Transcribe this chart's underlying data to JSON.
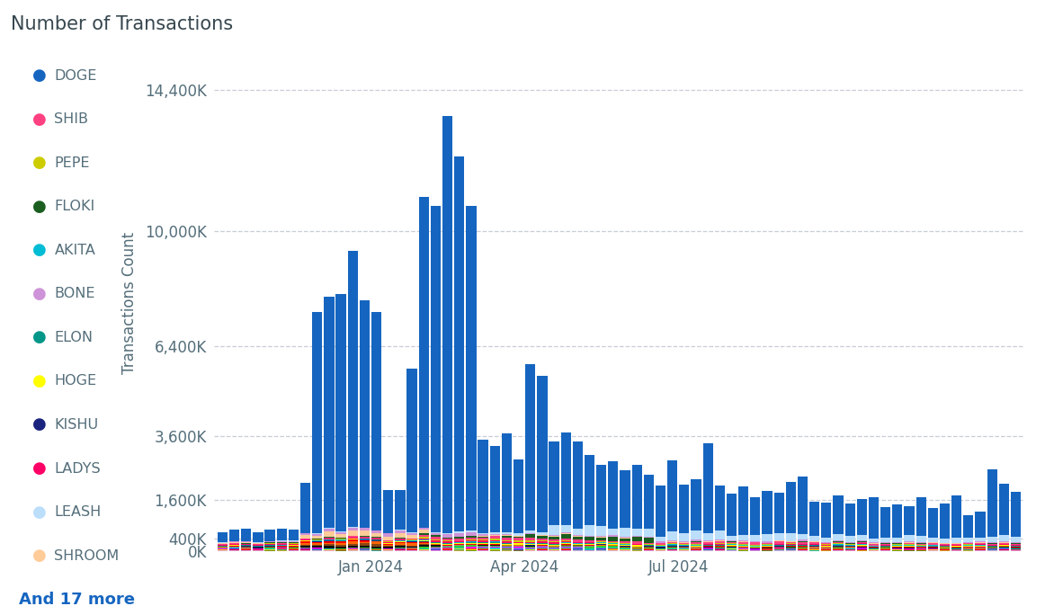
{
  "title": "Number of Transactions",
  "ylabel": "Transactions Count",
  "background_color": "#ffffff",
  "plot_bg_color": "#ffffff",
  "grid_color": "#b0b8c8",
  "title_color": "#37474f",
  "label_color": "#546e7a",
  "ytick_labels": [
    "0K",
    "400K",
    "1,600K",
    "3,600K",
    "6,400K",
    "10,000K",
    "14,400K"
  ],
  "ytick_values": [
    0,
    400000,
    1600000,
    3600000,
    6400000,
    10000000,
    14400000
  ],
  "ylim": [
    0,
    15500000
  ],
  "xtick_labels": [
    "Jan 2024",
    "Apr 2024",
    "Jul 2024"
  ],
  "legend_items": [
    {
      "label": "DOGE",
      "color": "#1565C0"
    },
    {
      "label": "SHIB",
      "color": "#FF4081"
    },
    {
      "label": "PEPE",
      "color": "#CCCC00"
    },
    {
      "label": "FLOKI",
      "color": "#1B5E20"
    },
    {
      "label": "AKITA",
      "color": "#00BCD4"
    },
    {
      "label": "BONE",
      "color": "#CE93D8"
    },
    {
      "label": "ELON",
      "color": "#009688"
    },
    {
      "label": "HOGE",
      "color": "#FFFF00"
    },
    {
      "label": "KISHU",
      "color": "#1A237E"
    },
    {
      "label": "LADYS",
      "color": "#FF0066"
    },
    {
      "label": "LEASH",
      "color": "#BBDEFB"
    },
    {
      "label": "SHROOM",
      "color": "#FFCC99"
    }
  ],
  "and_more_text": "And 17 more",
  "and_more_color": "#1565C0",
  "series_colors": {
    "DOGE": "#1565C0",
    "SHIB": "#FF4081",
    "PEPE": "#CCCC00",
    "FLOKI": "#1B5E20",
    "AKITA": "#00BCD4",
    "BONE": "#CE93D8",
    "ELON": "#009688",
    "HOGE": "#FFFF00",
    "KISHU": "#1A237E",
    "LADYS": "#FF0066",
    "LEASH": "#BBDEFB",
    "SHROOM": "#FFCC99",
    "R1": "#FF0000",
    "R2": "#FF6600",
    "R3": "#8B4513",
    "R4": "#111111",
    "R5": "#888888",
    "R6": "#33CC33",
    "R7": "#FF00FF",
    "R8": "#00CCCC",
    "R9": "#FF4500",
    "R10": "#9400D3",
    "R11": "#FFD700",
    "R12": "#DC143C",
    "R13": "#20B2AA",
    "R14": "#6B8E23",
    "R15": "#DDA0DD",
    "R16": "#DAA520",
    "R17": "#87CEEB"
  },
  "num_bars": 68,
  "bar_width": 0.85
}
